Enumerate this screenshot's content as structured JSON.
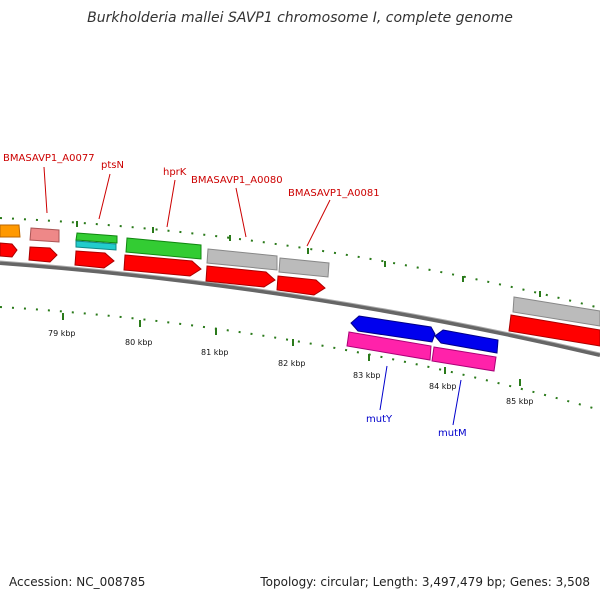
{
  "title": "Burkholderia mallei SAVP1 chromosome I, complete genome",
  "footer": {
    "accession": "Accession: NC_008785",
    "summary": "Topology: circular; Length: 3,497,479 bp; Genes: 3,508"
  },
  "colors": {
    "backbone": "#888888",
    "tick": "#2a7a1a",
    "label_forward": "#cc0000",
    "label_reverse": "#0000cc"
  },
  "scale_labels": [
    "79 kbp",
    "80 kbp",
    "81 kbp",
    "82 kbp",
    "83 kbp",
    "84 kbp",
    "85 kbp"
  ],
  "gene_labels": [
    {
      "name": "BMASAVP1_A0077",
      "strand": "forward"
    },
    {
      "name": "ptsN",
      "strand": "forward"
    },
    {
      "name": "hprK",
      "strand": "forward"
    },
    {
      "name": "BMASAVP1_A0080",
      "strand": "forward"
    },
    {
      "name": "BMASAVP1_A0081",
      "strand": "forward"
    },
    {
      "name": "mutY",
      "strand": "reverse"
    },
    {
      "name": "mutM",
      "strand": "reverse"
    }
  ],
  "features": [
    {
      "name": "orange-feature",
      "color": "#ff9900"
    },
    {
      "name": "pink-feature",
      "color": "#ee8888"
    },
    {
      "name": "green-feature-ptsN",
      "color": "#33cc33"
    },
    {
      "name": "cyan-feature-ptsN",
      "color": "#22cccc"
    },
    {
      "name": "green-feature-hprK",
      "color": "#33cc33"
    },
    {
      "name": "gray-feature-a0080",
      "color": "#bbbbbb"
    },
    {
      "name": "gray-feature-a0081",
      "color": "#bbbbbb"
    },
    {
      "name": "gray-feature-right",
      "color": "#bbbbbb"
    },
    {
      "name": "red-cds",
      "color": "#ff0000"
    },
    {
      "name": "blue-feature-mutY",
      "color": "#0000ee"
    },
    {
      "name": "blue-feature-mutM",
      "color": "#0000ee"
    },
    {
      "name": "magenta-feature-mutY",
      "color": "#ff22aa"
    },
    {
      "name": "magenta-feature-mutM",
      "color": "#ff22aa"
    }
  ]
}
